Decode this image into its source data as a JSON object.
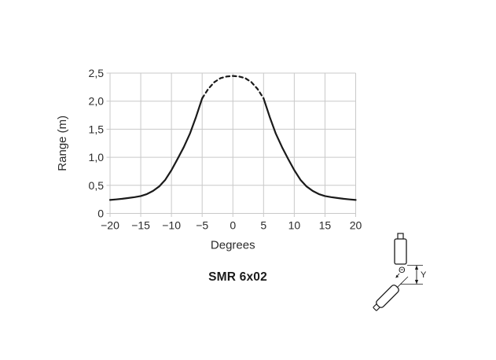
{
  "chart_data": {
    "type": "line",
    "title": "",
    "xlabel": "Degrees",
    "ylabel": "Range (m)",
    "xlim": [
      -20,
      20
    ],
    "ylim": [
      0,
      2.5
    ],
    "xticks": [
      -20,
      -15,
      -10,
      -5,
      0,
      5,
      10,
      15,
      20
    ],
    "xtick_labels": [
      "−20",
      "−15",
      "−10",
      "−5",
      "0",
      "5",
      "10",
      "15",
      "20"
    ],
    "yticks": [
      0,
      0.5,
      1.0,
      1.5,
      2.0,
      2.5
    ],
    "ytick_labels": [
      "0",
      "0,5",
      "1,0",
      "1,5",
      "2,0",
      "2,5"
    ],
    "grid": true,
    "legend": "none",
    "series": [
      {
        "name": "response-curve-left",
        "style": "solid",
        "points": [
          [
            -20,
            0.24
          ],
          [
            -19,
            0.25
          ],
          [
            -18,
            0.26
          ],
          [
            -17,
            0.275
          ],
          [
            -16,
            0.29
          ],
          [
            -15,
            0.31
          ],
          [
            -14,
            0.345
          ],
          [
            -13,
            0.4
          ],
          [
            -12,
            0.48
          ],
          [
            -11,
            0.6
          ],
          [
            -10,
            0.77
          ],
          [
            -9,
            0.97
          ],
          [
            -8,
            1.18
          ],
          [
            -7,
            1.42
          ],
          [
            -6,
            1.72
          ],
          [
            -5,
            2.05
          ]
        ]
      },
      {
        "name": "response-curve-top",
        "style": "dashed",
        "points": [
          [
            -5,
            2.05
          ],
          [
            -4,
            2.22
          ],
          [
            -3,
            2.34
          ],
          [
            -2,
            2.41
          ],
          [
            -1,
            2.44
          ],
          [
            0,
            2.45
          ],
          [
            1,
            2.44
          ],
          [
            2,
            2.41
          ],
          [
            3,
            2.34
          ],
          [
            4,
            2.22
          ],
          [
            5,
            2.05
          ]
        ]
      },
      {
        "name": "response-curve-right",
        "style": "solid",
        "points": [
          [
            5,
            2.05
          ],
          [
            6,
            1.72
          ],
          [
            7,
            1.42
          ],
          [
            8,
            1.18
          ],
          [
            9,
            0.97
          ],
          [
            10,
            0.77
          ],
          [
            11,
            0.6
          ],
          [
            12,
            0.48
          ],
          [
            13,
            0.4
          ],
          [
            14,
            0.345
          ],
          [
            15,
            0.31
          ],
          [
            16,
            0.29
          ],
          [
            17,
            0.275
          ],
          [
            18,
            0.26
          ],
          [
            19,
            0.25
          ],
          [
            20,
            0.24
          ]
        ]
      }
    ]
  },
  "caption": {
    "text": "SMR 6x02"
  },
  "diagram": {
    "angle_label": "Θ",
    "offset_label": "Y"
  },
  "colors": {
    "curve": "#1a1a1a",
    "grid": "#c9c9c9",
    "text": "#2b2b2b",
    "diagram_stroke": "#1a1a1a"
  }
}
